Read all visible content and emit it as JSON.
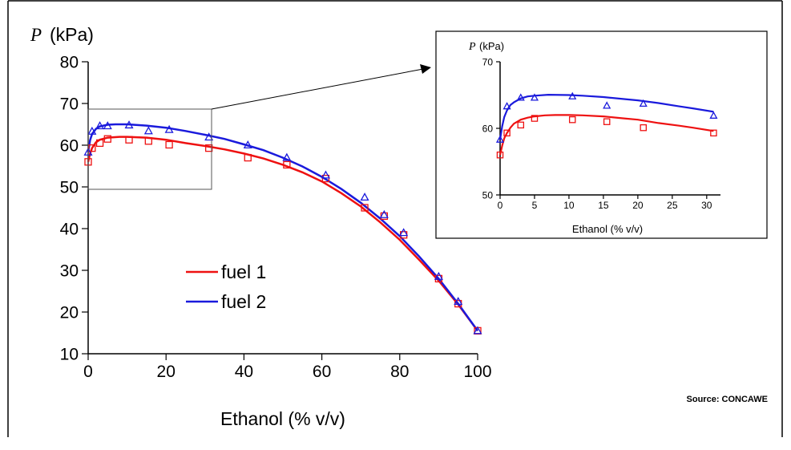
{
  "source_note": "Source: CONCAWE",
  "chart_data": [
    {
      "type": "scatter",
      "panel": "main",
      "ylabel_symbol": "P",
      "ylabel_unit": "(kPa)",
      "xlabel": "Ethanol (% v/v)",
      "xlim": [
        0,
        100
      ],
      "ylim": [
        10,
        80
      ],
      "xticks": [
        0,
        20,
        40,
        60,
        80,
        100
      ],
      "yticks": [
        10,
        20,
        30,
        40,
        50,
        60,
        70,
        80
      ],
      "grid": false,
      "legend_position": "center-left",
      "series": [
        {
          "name": "fuel 1",
          "color": "#ee1111",
          "marker": "square",
          "points": [
            [
              0,
              56
            ],
            [
              1,
              59.3
            ],
            [
              3,
              60.5
            ],
            [
              5,
              61.5
            ],
            [
              10.5,
              61.3
            ],
            [
              15.5,
              61
            ],
            [
              20.8,
              60.1
            ],
            [
              31,
              59.3
            ],
            [
              41,
              57
            ],
            [
              51,
              55.3
            ],
            [
              61,
              52
            ],
            [
              71,
              45
            ],
            [
              76,
              43
            ],
            [
              81,
              38.5
            ],
            [
              90,
              28
            ],
            [
              95,
              22
            ],
            [
              100,
              15.5
            ]
          ],
          "curve": [
            [
              0,
              56
            ],
            [
              0.5,
              58
            ],
            [
              1,
              59.3
            ],
            [
              2,
              60.7
            ],
            [
              3,
              61.3
            ],
            [
              5,
              61.8
            ],
            [
              8,
              62
            ],
            [
              10,
              62
            ],
            [
              15,
              61.8
            ],
            [
              20,
              61.3
            ],
            [
              25,
              60.5
            ],
            [
              30,
              59.8
            ],
            [
              35,
              59
            ],
            [
              40,
              58
            ],
            [
              45,
              56.8
            ],
            [
              50,
              55.3
            ],
            [
              55,
              53.5
            ],
            [
              60,
              51.3
            ],
            [
              65,
              48.5
            ],
            [
              70,
              45.3
            ],
            [
              75,
              41.5
            ],
            [
              80,
              37.3
            ],
            [
              85,
              32.5
            ],
            [
              90,
              27.5
            ],
            [
              95,
              21.8
            ],
            [
              100,
              15.5
            ]
          ]
        },
        {
          "name": "fuel 2",
          "color": "#1a1adc",
          "marker": "triangle",
          "points": [
            [
              0,
              58.3
            ],
            [
              1,
              63.3
            ],
            [
              3,
              64.6
            ],
            [
              5,
              64.6
            ],
            [
              10.5,
              64.8
            ],
            [
              15.5,
              63.4
            ],
            [
              20.8,
              63.7
            ],
            [
              31,
              61.9
            ],
            [
              41,
              60
            ],
            [
              51,
              57
            ],
            [
              61,
              52.8
            ],
            [
              71,
              47.5
            ],
            [
              76,
              43.3
            ],
            [
              81,
              39
            ],
            [
              90,
              28.5
            ],
            [
              95,
              22.5
            ],
            [
              100,
              15.5
            ]
          ],
          "curve": [
            [
              0,
              58.3
            ],
            [
              0.5,
              61.2
            ],
            [
              1,
              62.7
            ],
            [
              2,
              63.9
            ],
            [
              3,
              64.5
            ],
            [
              5,
              64.9
            ],
            [
              7,
              65
            ],
            [
              10,
              65
            ],
            [
              15,
              64.7
            ],
            [
              20,
              64.2
            ],
            [
              25,
              63.4
            ],
            [
              30,
              62.5
            ],
            [
              35,
              61.5
            ],
            [
              40,
              60.2
            ],
            [
              45,
              58.8
            ],
            [
              50,
              57
            ],
            [
              55,
              54.9
            ],
            [
              60,
              52.4
            ],
            [
              65,
              49.5
            ],
            [
              70,
              46.2
            ],
            [
              75,
              42.4
            ],
            [
              80,
              38.2
            ],
            [
              85,
              33.3
            ],
            [
              90,
              28
            ],
            [
              95,
              22
            ],
            [
              100,
              15.5
            ]
          ]
        }
      ]
    },
    {
      "type": "scatter",
      "panel": "inset",
      "ylabel_symbol": "P",
      "ylabel_unit": "(kPa)",
      "xlabel": "Ethanol (% v/v)",
      "xlim": [
        0,
        32
      ],
      "ylim": [
        50,
        70
      ],
      "xticks": [
        0,
        5,
        10,
        15,
        20,
        25,
        30
      ],
      "yticks": [
        50,
        60,
        70
      ],
      "grid": false,
      "series": [
        {
          "name": "fuel 1",
          "color": "#ee1111",
          "marker": "square",
          "points": [
            [
              0,
              56
            ],
            [
              1,
              59.3
            ],
            [
              3,
              60.5
            ],
            [
              5,
              61.5
            ],
            [
              10.5,
              61.3
            ],
            [
              15.5,
              61
            ],
            [
              20.8,
              60.1
            ],
            [
              31,
              59.3
            ]
          ],
          "curve": [
            [
              0,
              56
            ],
            [
              0.3,
              57.4
            ],
            [
              0.6,
              58.5
            ],
            [
              1,
              59.3
            ],
            [
              1.5,
              60.1
            ],
            [
              2,
              60.7
            ],
            [
              3,
              61.3
            ],
            [
              4,
              61.6
            ],
            [
              5,
              61.8
            ],
            [
              6.5,
              61.95
            ],
            [
              8,
              62
            ],
            [
              10,
              62
            ],
            [
              12,
              61.95
            ],
            [
              15,
              61.8
            ],
            [
              18,
              61.5
            ],
            [
              20,
              61.3
            ],
            [
              23,
              60.8
            ],
            [
              26,
              60.4
            ],
            [
              28,
              60.1
            ],
            [
              31,
              59.6
            ]
          ]
        },
        {
          "name": "fuel 2",
          "color": "#1a1adc",
          "marker": "triangle",
          "points": [
            [
              0,
              58.3
            ],
            [
              1,
              63.3
            ],
            [
              3,
              64.6
            ],
            [
              5,
              64.6
            ],
            [
              10.5,
              64.8
            ],
            [
              15.5,
              63.4
            ],
            [
              20.8,
              63.7
            ],
            [
              31,
              61.9
            ]
          ],
          "curve": [
            [
              0,
              58.3
            ],
            [
              0.3,
              60.3
            ],
            [
              0.6,
              61.7
            ],
            [
              1,
              62.7
            ],
            [
              1.5,
              63.5
            ],
            [
              2,
              63.9
            ],
            [
              3,
              64.5
            ],
            [
              4,
              64.8
            ],
            [
              5,
              64.9
            ],
            [
              7,
              65.05
            ],
            [
              10,
              65
            ],
            [
              12,
              64.9
            ],
            [
              15,
              64.7
            ],
            [
              18,
              64.4
            ],
            [
              20,
              64.2
            ],
            [
              23,
              63.8
            ],
            [
              26,
              63.3
            ],
            [
              28,
              63
            ],
            [
              31,
              62.5
            ]
          ]
        }
      ]
    }
  ]
}
